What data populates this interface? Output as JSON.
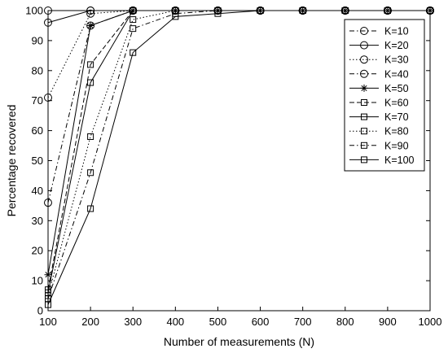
{
  "chart_data": {
    "type": "line",
    "title": "",
    "xlabel": "Number of measurements (N)",
    "ylabel": "Percentage recovered",
    "xlim": [
      100,
      1000
    ],
    "ylim": [
      0,
      100
    ],
    "xticks": [
      100,
      200,
      300,
      400,
      500,
      600,
      700,
      800,
      900,
      1000
    ],
    "yticks": [
      0,
      10,
      20,
      30,
      40,
      50,
      60,
      70,
      80,
      90,
      100
    ],
    "x": [
      100,
      200,
      300,
      400,
      500,
      600,
      700,
      800,
      900,
      1000
    ],
    "grid": false,
    "legend_position": "top-right",
    "series": [
      {
        "name": "K=10",
        "marker": "circle",
        "dash": "dashdot",
        "values": [
          100,
          100,
          100,
          100,
          100,
          100,
          100,
          100,
          100,
          100
        ]
      },
      {
        "name": "K=20",
        "marker": "circle",
        "dash": "solid",
        "values": [
          96,
          100,
          100,
          100,
          100,
          100,
          100,
          100,
          100,
          100
        ]
      },
      {
        "name": "K=30",
        "marker": "circle",
        "dash": "dotted",
        "values": [
          71,
          99,
          100,
          100,
          100,
          100,
          100,
          100,
          100,
          100
        ]
      },
      {
        "name": "K=40",
        "marker": "circle",
        "dash": "dashdot",
        "values": [
          36,
          95,
          100,
          100,
          100,
          100,
          100,
          100,
          100,
          100
        ]
      },
      {
        "name": "K=50",
        "marker": "star",
        "dash": "solid",
        "values": [
          12,
          95,
          100,
          100,
          100,
          100,
          100,
          100,
          100,
          100
        ]
      },
      {
        "name": "K=60",
        "marker": "square",
        "dash": "dashed",
        "values": [
          7,
          82,
          100,
          100,
          100,
          100,
          100,
          100,
          100,
          100
        ]
      },
      {
        "name": "K=70",
        "marker": "square",
        "dash": "solid",
        "values": [
          6,
          76,
          100,
          100,
          100,
          100,
          100,
          100,
          100,
          100
        ]
      },
      {
        "name": "K=80",
        "marker": "square",
        "dash": "dotted",
        "values": [
          5,
          58,
          97,
          100,
          100,
          100,
          100,
          100,
          100,
          100
        ]
      },
      {
        "name": "K=90",
        "marker": "square",
        "dash": "dashdot",
        "values": [
          4,
          46,
          94,
          99,
          100,
          100,
          100,
          100,
          100,
          100
        ]
      },
      {
        "name": "K=100",
        "marker": "square",
        "dash": "solid",
        "values": [
          2,
          34,
          86,
          98,
          99,
          100,
          100,
          100,
          100,
          100
        ]
      }
    ]
  }
}
